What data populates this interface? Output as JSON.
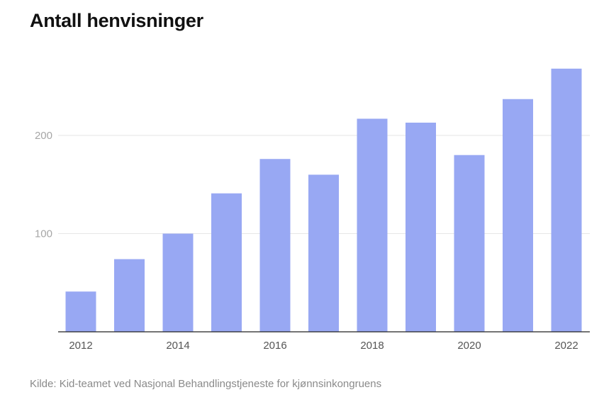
{
  "chart_data": {
    "type": "bar",
    "title": "Antall henvisninger",
    "categories": [
      "2012",
      "2013",
      "2014",
      "2015",
      "2016",
      "2017",
      "2018",
      "2019",
      "2020",
      "2021",
      "2022"
    ],
    "values": [
      41,
      74,
      100,
      141,
      176,
      160,
      217,
      213,
      180,
      237,
      268
    ],
    "x_tick_labels": [
      "2012",
      "2014",
      "2016",
      "2018",
      "2020",
      "2022"
    ],
    "y_ticks": [
      "100",
      "200"
    ],
    "ylim": [
      0,
      280
    ],
    "grid": true,
    "bar_color": "#98a8f3",
    "source": "Kilde: Kid-teamet ved Nasjonal Behandlingstjeneste for kjønnsinkongruens"
  }
}
